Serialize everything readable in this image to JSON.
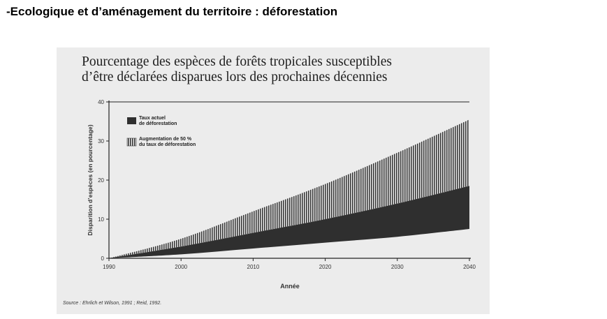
{
  "heading": "-Ecologique et d’aménagement du territoire : déforestation",
  "source": "Source : Ehrlich et Wilson, 1991 ; Reid, 1992.",
  "chart_data": {
    "type": "area",
    "title": [
      "Pourcentage des espèces de forêts tropicales susceptibles",
      "d’être déclarées disparues lors des prochaines décennies"
    ],
    "xlabel": "Année",
    "ylabel": "Disparition d’espèces (en pourcentage)",
    "xlim": [
      1990,
      2040
    ],
    "ylim": [
      0,
      40
    ],
    "x_ticks": [
      1990,
      2000,
      2010,
      2020,
      2030,
      2040
    ],
    "y_ticks": [
      0,
      10,
      20,
      30,
      40
    ],
    "x": [
      1990,
      2000,
      2010,
      2020,
      2030,
      2040
    ],
    "lower_bound": [
      0,
      1,
      2.5,
      4,
      5.5,
      7.5
    ],
    "series": [
      {
        "name": "Taux actuel de déforestation",
        "legend_lines": [
          "Taux actuel",
          "de déforestation"
        ],
        "values": [
          0,
          3,
          6.5,
          10,
          14,
          18.5
        ],
        "color": "#2f2f2f",
        "pattern": "solid"
      },
      {
        "name": "Augmentation de 50 % du taux de déforestation",
        "legend_lines": [
          "Augmentation de 50 %",
          "du taux de déforestation"
        ],
        "values": [
          0,
          5,
          12,
          19,
          27,
          35.5
        ],
        "color": "#3a3a3a",
        "pattern": "hatched"
      }
    ],
    "legend": "top-left",
    "grid": false
  }
}
